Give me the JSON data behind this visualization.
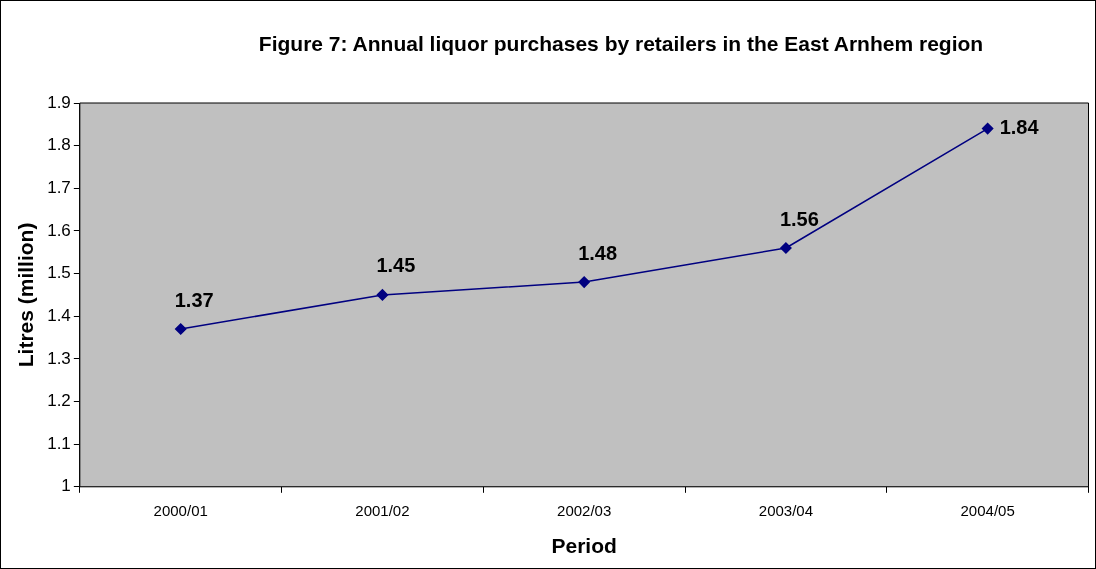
{
  "chart_data": {
    "type": "line",
    "title": "Figure 7: Annual liquor purchases by retailers in the East Arnhem region",
    "xlabel": "Period",
    "ylabel": "Litres (million)",
    "categories": [
      "2000/01",
      "2001/02",
      "2002/03",
      "2003/04",
      "2004/05"
    ],
    "series": [
      {
        "color": "#000080",
        "values": [
          1.37,
          1.45,
          1.48,
          1.56,
          1.84
        ]
      }
    ],
    "ylim": [
      1,
      1.9
    ],
    "yticks": [
      1,
      1.1,
      1.2,
      1.3,
      1.4,
      1.5,
      1.6,
      1.7,
      1.8,
      1.9
    ],
    "data_labels": true,
    "legend": false,
    "marker": "diamond",
    "line_style": "solid"
  }
}
